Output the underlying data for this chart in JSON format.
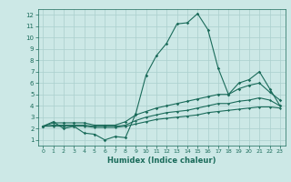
{
  "xlabel": "Humidex (Indice chaleur)",
  "ylabel": "",
  "bg_color": "#cce8e6",
  "grid_color": "#aacfcd",
  "line_color": "#1a6b5a",
  "xlim": [
    -0.5,
    23.5
  ],
  "ylim": [
    0.5,
    12.5
  ],
  "xticks": [
    0,
    1,
    2,
    3,
    4,
    5,
    6,
    7,
    8,
    9,
    10,
    11,
    12,
    13,
    14,
    15,
    16,
    17,
    18,
    19,
    20,
    21,
    22,
    23
  ],
  "yticks": [
    1,
    2,
    3,
    4,
    5,
    6,
    7,
    8,
    9,
    10,
    11,
    12
  ],
  "line1_x": [
    0,
    1,
    2,
    3,
    4,
    5,
    6,
    7,
    8,
    9,
    10,
    11,
    12,
    13,
    14,
    15,
    16,
    17,
    18,
    19,
    20,
    21,
    22,
    23
  ],
  "line1_y": [
    2.2,
    2.6,
    2.0,
    2.2,
    1.6,
    1.5,
    1.0,
    1.3,
    1.2,
    3.3,
    6.7,
    8.4,
    9.5,
    11.2,
    11.3,
    12.1,
    10.7,
    7.3,
    5.0,
    6.0,
    6.3,
    7.0,
    5.5,
    4.0
  ],
  "line2_x": [
    0,
    1,
    2,
    3,
    4,
    5,
    6,
    7,
    8,
    9,
    10,
    11,
    12,
    13,
    14,
    15,
    16,
    17,
    18,
    19,
    20,
    21,
    22,
    23
  ],
  "line2_y": [
    2.2,
    2.5,
    2.5,
    2.5,
    2.5,
    2.3,
    2.3,
    2.3,
    2.6,
    3.2,
    3.5,
    3.8,
    4.0,
    4.2,
    4.4,
    4.6,
    4.8,
    5.0,
    5.0,
    5.5,
    5.8,
    6.0,
    5.2,
    4.5
  ],
  "line3_x": [
    0,
    1,
    2,
    3,
    4,
    5,
    6,
    7,
    8,
    9,
    10,
    11,
    12,
    13,
    14,
    15,
    16,
    17,
    18,
    19,
    20,
    21,
    22,
    23
  ],
  "line3_y": [
    2.2,
    2.3,
    2.3,
    2.3,
    2.3,
    2.2,
    2.2,
    2.2,
    2.3,
    2.7,
    3.0,
    3.2,
    3.4,
    3.5,
    3.6,
    3.8,
    4.0,
    4.2,
    4.2,
    4.4,
    4.5,
    4.7,
    4.5,
    4.0
  ],
  "line4_x": [
    0,
    1,
    2,
    3,
    4,
    5,
    6,
    7,
    8,
    9,
    10,
    11,
    12,
    13,
    14,
    15,
    16,
    17,
    18,
    19,
    20,
    21,
    22,
    23
  ],
  "line4_y": [
    2.2,
    2.2,
    2.2,
    2.2,
    2.2,
    2.1,
    2.1,
    2.1,
    2.2,
    2.4,
    2.6,
    2.8,
    2.9,
    3.0,
    3.1,
    3.2,
    3.4,
    3.5,
    3.6,
    3.7,
    3.8,
    3.9,
    3.9,
    3.8
  ]
}
